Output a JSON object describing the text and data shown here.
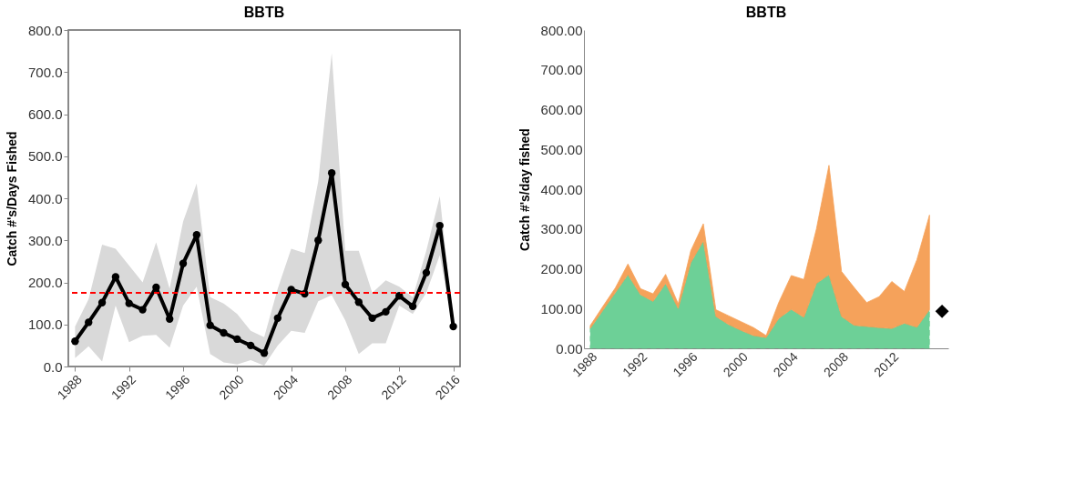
{
  "chart_data": [
    {
      "type": "line",
      "title": "BBTB",
      "ylabel": "Catch #'s/Days Fished",
      "x": [
        1988,
        1989,
        1990,
        1991,
        1992,
        1993,
        1994,
        1995,
        1996,
        1997,
        1998,
        1999,
        2000,
        2001,
        2002,
        2003,
        2004,
        2005,
        2006,
        2007,
        2008,
        2009,
        2010,
        2011,
        2012,
        2013,
        2014,
        2015,
        2016
      ],
      "series": [
        {
          "color": "#000000",
          "values": [
            60,
            105,
            152,
            213,
            150,
            135,
            188,
            113,
            245,
            313,
            98,
            80,
            65,
            50,
            32,
            115,
            183,
            173,
            300,
            460,
            195,
            153,
            115,
            130,
            168,
            143,
            223,
            335,
            95
          ],
          "lower": [
            20,
            48,
            12,
            145,
            58,
            73,
            75,
            45,
            145,
            190,
            30,
            10,
            5,
            15,
            2,
            50,
            85,
            80,
            155,
            170,
            110,
            30,
            55,
            55,
            145,
            125,
            175,
            265,
            90
          ],
          "upper": [
            95,
            160,
            290,
            280,
            240,
            200,
            295,
            185,
            345,
            435,
            165,
            150,
            125,
            85,
            70,
            185,
            280,
            270,
            440,
            745,
            275,
            275,
            175,
            205,
            190,
            165,
            275,
            405,
            100
          ]
        }
      ],
      "marker": "circle",
      "line_style": "solid",
      "ref_lines": [
        {
          "axis": "y",
          "value": 175,
          "color": "#ff0000",
          "line_style": "dashed"
        }
      ],
      "xlim": [
        1987.5,
        2016.5
      ],
      "xticks": [
        1988,
        1992,
        1996,
        2000,
        2004,
        2008,
        2012,
        2016
      ],
      "ylim": [
        0,
        800
      ],
      "yticks": [
        {
          "value": 0,
          "label": "0.0"
        },
        {
          "value": 100,
          "label": "100.0"
        },
        {
          "value": 200,
          "label": "200.0"
        },
        {
          "value": 300,
          "label": "300.0"
        },
        {
          "value": 400,
          "label": "400.0"
        },
        {
          "value": 500,
          "label": "500.0"
        },
        {
          "value": 600,
          "label": "600.0"
        },
        {
          "value": 700,
          "label": "700.0"
        },
        {
          "value": 800,
          "label": "800.0"
        }
      ],
      "grid": false
    },
    {
      "type": "area",
      "title": "BBTB",
      "ylabel": "Catch #'s/day fished",
      "stacked": true,
      "x": [
        1988,
        1989,
        1990,
        1991,
        1992,
        1993,
        1994,
        1995,
        1996,
        1997,
        1998,
        1999,
        2000,
        2001,
        2002,
        2003,
        2004,
        2005,
        2006,
        2007,
        2008,
        2009,
        2010,
        2011,
        2012,
        2013,
        2014,
        2015
      ],
      "series": [
        {
          "color": "#5ecb8c",
          "line_style": "dashed",
          "values": [
            50,
            95,
            140,
            185,
            135,
            118,
            163,
            100,
            215,
            270,
            80,
            60,
            45,
            32,
            27,
            75,
            98,
            78,
            163,
            185,
            80,
            58,
            55,
            52,
            50,
            63,
            53,
            97
          ]
        },
        {
          "color": "#f5994a",
          "values": [
            7,
            10,
            12,
            27,
            15,
            19,
            23,
            12,
            30,
            43,
            17,
            22,
            22,
            20,
            5,
            40,
            85,
            95,
            137,
            275,
            113,
            95,
            60,
            78,
            118,
            80,
            170,
            238
          ]
        },
        {
          "type": "scatter",
          "marker": "diamond",
          "color": "#000000",
          "x": [
            2016
          ],
          "values": [
            93
          ]
        }
      ],
      "xlim": [
        1987.5,
        2016.5
      ],
      "xticks": [
        1988,
        1992,
        1996,
        2000,
        2004,
        2008,
        2012
      ],
      "ylim": [
        0,
        800
      ],
      "yticks": [
        {
          "value": 0,
          "label": "0.00"
        },
        {
          "value": 100,
          "label": "100.00"
        },
        {
          "value": 200,
          "label": "200.00"
        },
        {
          "value": 300,
          "label": "300.00"
        },
        {
          "value": 400,
          "label": "400.00"
        },
        {
          "value": 500,
          "label": "500.00"
        },
        {
          "value": 600,
          "label": "600.00"
        },
        {
          "value": 700,
          "label": "700.00"
        },
        {
          "value": 800,
          "label": "800.00"
        }
      ],
      "grid": false
    }
  ]
}
